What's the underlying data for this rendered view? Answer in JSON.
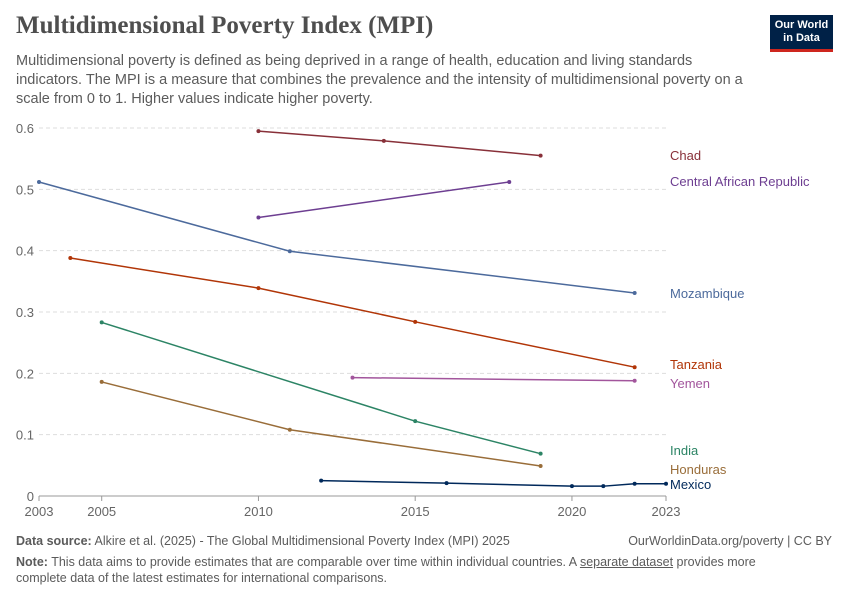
{
  "header": {
    "title": "Multidimensional Poverty Index (MPI)",
    "subtitle": "Multidimensional poverty is defined as being deprived in a range of health, education and living standards indicators. The MPI is a measure that combines the prevalence and the intensity of multidimensional poverty on a scale from 0 to 1. Higher values indicate higher poverty.",
    "logo": [
      "Our World",
      "in Data"
    ]
  },
  "footer": {
    "source_label": "Data source:",
    "source": "Alkire et al. (2025) - The Global Multidimensional Poverty Index (MPI) 2025",
    "url": "OurWorldinData.org/poverty | CC BY",
    "note_label": "Note:",
    "note_a": "This data aims to provide estimates that are comparable over time within individual countries. A ",
    "note_link": "separate dataset",
    "note_b": " provides more complete data of the latest estimates for international comparisons."
  },
  "chart_data": {
    "type": "line",
    "title": "Multidimensional Poverty Index (MPI)",
    "xlim": [
      2003,
      2023
    ],
    "ylim": [
      0,
      0.6
    ],
    "xticks": [
      "2003",
      "2005",
      "2010",
      "2015",
      "2020",
      "2023"
    ],
    "yticks": [
      "0",
      "0.1",
      "0.2",
      "0.3",
      "0.4",
      "0.5",
      "0.6"
    ],
    "grid": "horizontal dashed",
    "legend": "line-end labels right",
    "series": [
      {
        "name": "Chad",
        "color": "#883039",
        "x": [
          2010,
          2014,
          2019
        ],
        "y": [
          0.595,
          0.579,
          0.555
        ]
      },
      {
        "name": "Central African Republic",
        "color": "#6D3E91",
        "x": [
          2010,
          2018
        ],
        "y": [
          0.454,
          0.512
        ]
      },
      {
        "name": "Mozambique",
        "color": "#4C6A9C",
        "x": [
          2003,
          2011,
          2022
        ],
        "y": [
          0.512,
          0.399,
          0.331
        ]
      },
      {
        "name": "Tanzania",
        "color": "#B13507",
        "x": [
          2004,
          2010,
          2015,
          2022
        ],
        "y": [
          0.388,
          0.339,
          0.284,
          0.21
        ]
      },
      {
        "name": "Yemen",
        "color": "#A2559C",
        "x": [
          2013,
          2022
        ],
        "y": [
          0.193,
          0.188
        ]
      },
      {
        "name": "India",
        "color": "#2C8465",
        "x": [
          2005,
          2015,
          2019
        ],
        "y": [
          0.283,
          0.122,
          0.069
        ]
      },
      {
        "name": "Honduras",
        "color": "#996D39",
        "x": [
          2005,
          2011,
          2019
        ],
        "y": [
          0.186,
          0.108,
          0.049
        ]
      },
      {
        "name": "Mexico",
        "color": "#00295B",
        "x": [
          2012,
          2016,
          2020,
          2021,
          2022,
          2023
        ],
        "y": [
          0.025,
          0.021,
          0.016,
          0.016,
          0.02,
          0.02
        ]
      }
    ]
  }
}
